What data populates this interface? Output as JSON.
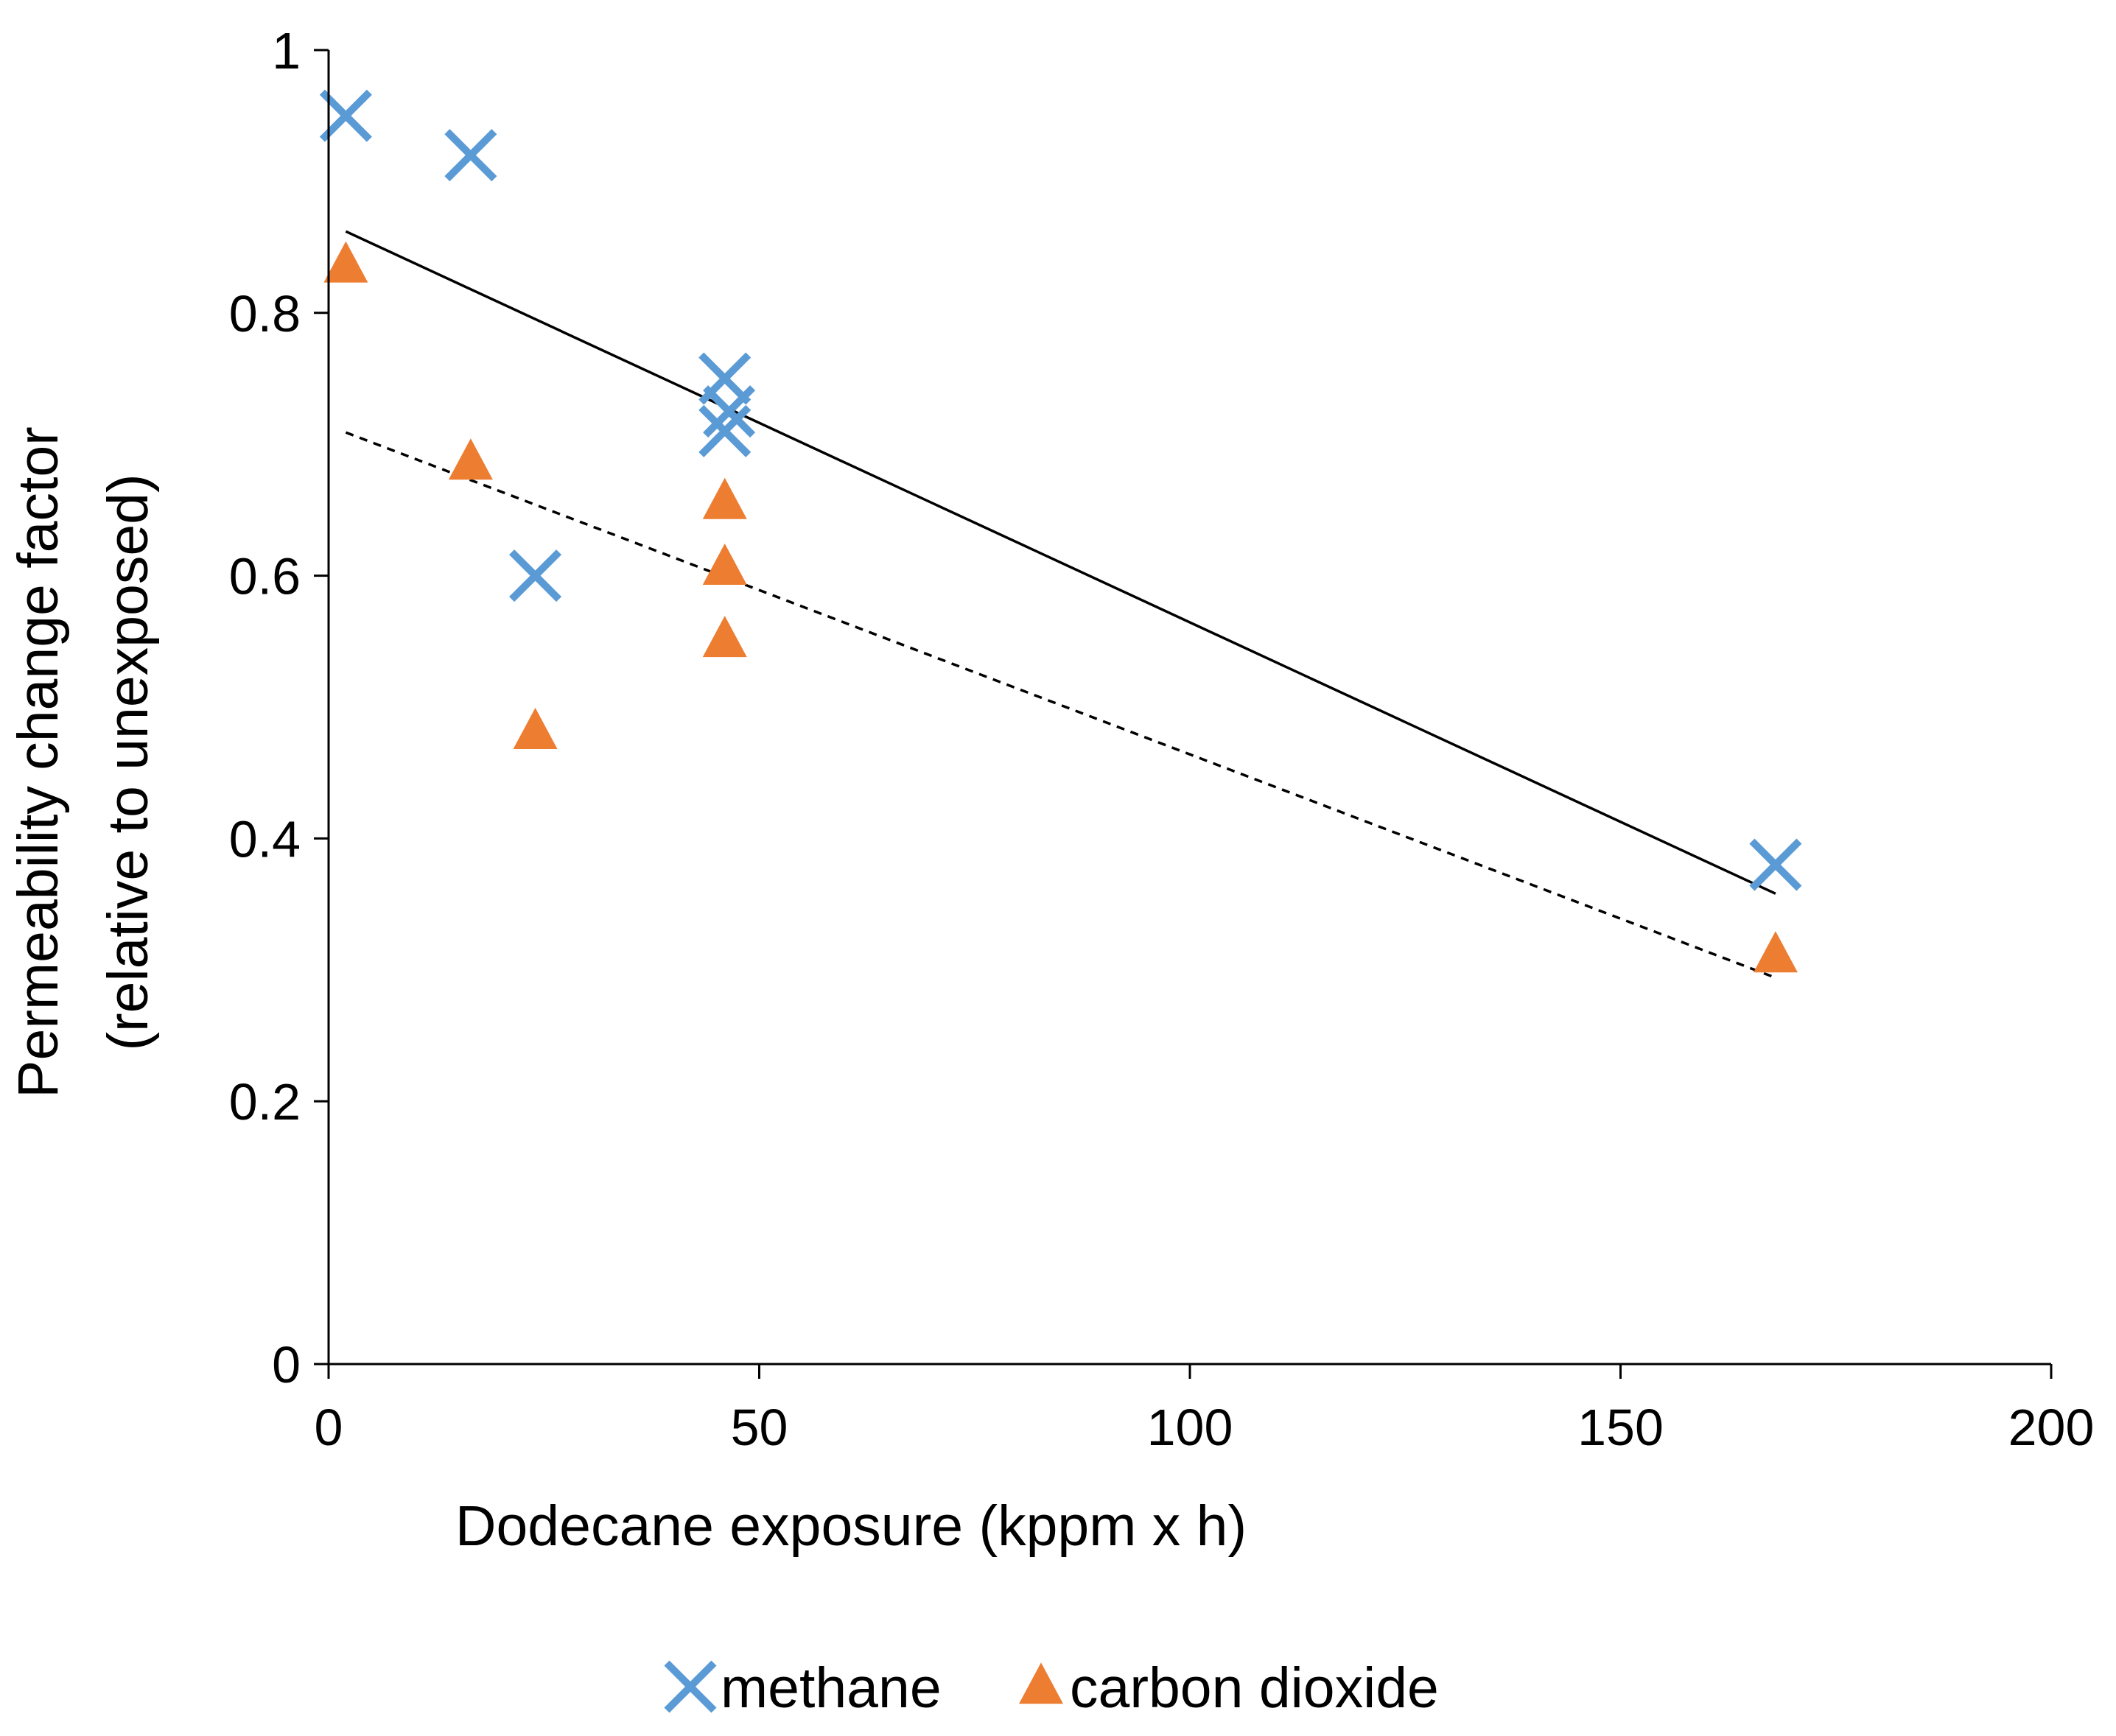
{
  "chart_data": {
    "type": "scatter",
    "title": "",
    "xlabel": "Dodecane exposure (kppm x h)",
    "ylabel": [
      "Permeability change factor",
      "(relative to unexposed)"
    ],
    "xlim": [
      0,
      200
    ],
    "ylim": [
      0,
      1
    ],
    "xticks": [
      0,
      50,
      100,
      150,
      200
    ],
    "yticks": [
      0,
      0.2,
      0.4,
      0.6,
      0.8,
      1
    ],
    "xtick_labels": [
      "0",
      "50",
      "100",
      "150",
      "200"
    ],
    "ytick_labels": [
      "0",
      "0.2",
      "0.4",
      "0.6",
      "0.8",
      "1"
    ],
    "grid": false,
    "legend_position": "bottom",
    "series": [
      {
        "name": "methane",
        "marker": "x",
        "color": "#5B9BD5",
        "points": [
          {
            "x": 2,
            "y": 0.95
          },
          {
            "x": 16.5,
            "y": 0.92
          },
          {
            "x": 24,
            "y": 0.6
          },
          {
            "x": 46,
            "y": 0.75
          },
          {
            "x": 46.5,
            "y": 0.725
          },
          {
            "x": 46,
            "y": 0.71
          },
          {
            "x": 168,
            "y": 0.38
          }
        ],
        "trendline": {
          "style": "solid",
          "color": "#000000",
          "x": [
            2,
            168
          ],
          "y": [
            0.862,
            0.358
          ]
        }
      },
      {
        "name": "carbon dioxide",
        "marker": "triangle",
        "color": "#ED7D31",
        "points": [
          {
            "x": 2,
            "y": 0.835
          },
          {
            "x": 16.5,
            "y": 0.685
          },
          {
            "x": 24,
            "y": 0.48
          },
          {
            "x": 46,
            "y": 0.655
          },
          {
            "x": 46,
            "y": 0.605
          },
          {
            "x": 46,
            "y": 0.55
          },
          {
            "x": 168,
            "y": 0.31
          }
        ],
        "trendline": {
          "style": "dashed",
          "color": "#000000",
          "x": [
            2,
            168
          ],
          "y": [
            0.709,
            0.294
          ]
        }
      }
    ]
  }
}
